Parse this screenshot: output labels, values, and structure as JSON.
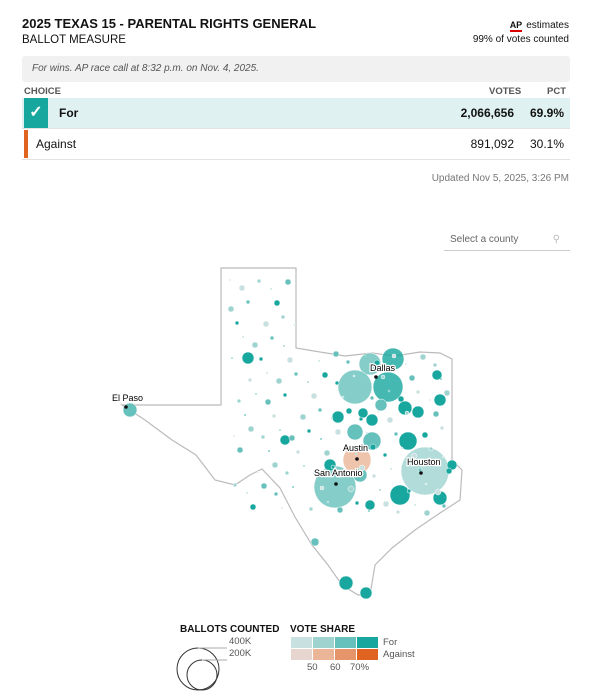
{
  "header": {
    "title": "2025 TEXAS 15 - PARENTAL RIGHTS GENERAL",
    "subtitle": "BALLOT MEASURE",
    "ap_logo": "AP",
    "ap_estimates": "estimates",
    "counted": "99% of votes counted"
  },
  "call_text": "For wins. AP race call at 8:32 p.m. on Nov. 4, 2025.",
  "table": {
    "headers": {
      "choice": "CHOICE",
      "votes": "VOTES",
      "pct": "PCT"
    },
    "rows": [
      {
        "choice": "For",
        "votes": "2,066,656",
        "pct": "69.9%",
        "winner": true,
        "color": "#17a79e"
      },
      {
        "choice": "Against",
        "votes": "891,092",
        "pct": "30.1%",
        "winner": false,
        "color": "#e0631f"
      }
    ]
  },
  "updated": "Updated Nov 5, 2025, 3:26 PM",
  "county_search": {
    "placeholder": "Select a county",
    "icon": "search-icon"
  },
  "map": {
    "cities": [
      "El Paso",
      "Dallas",
      "Austin",
      "San Antonio",
      "Houston"
    ]
  },
  "legend": {
    "ballots_title": "BALLOTS COUNTED",
    "ballots_sizes": [
      "400K",
      "200K"
    ],
    "share_title": "VOTE SHARE",
    "share_ticks": [
      "50",
      "60",
      "70%"
    ],
    "for_label": "For",
    "against_label": "Against",
    "for_colors": [
      "#c9e0e0",
      "#9fd3d0",
      "#66c0bb",
      "#17a79e"
    ],
    "against_colors": [
      "#e6d6cf",
      "#ebb597",
      "#e69469",
      "#e0631f"
    ]
  }
}
